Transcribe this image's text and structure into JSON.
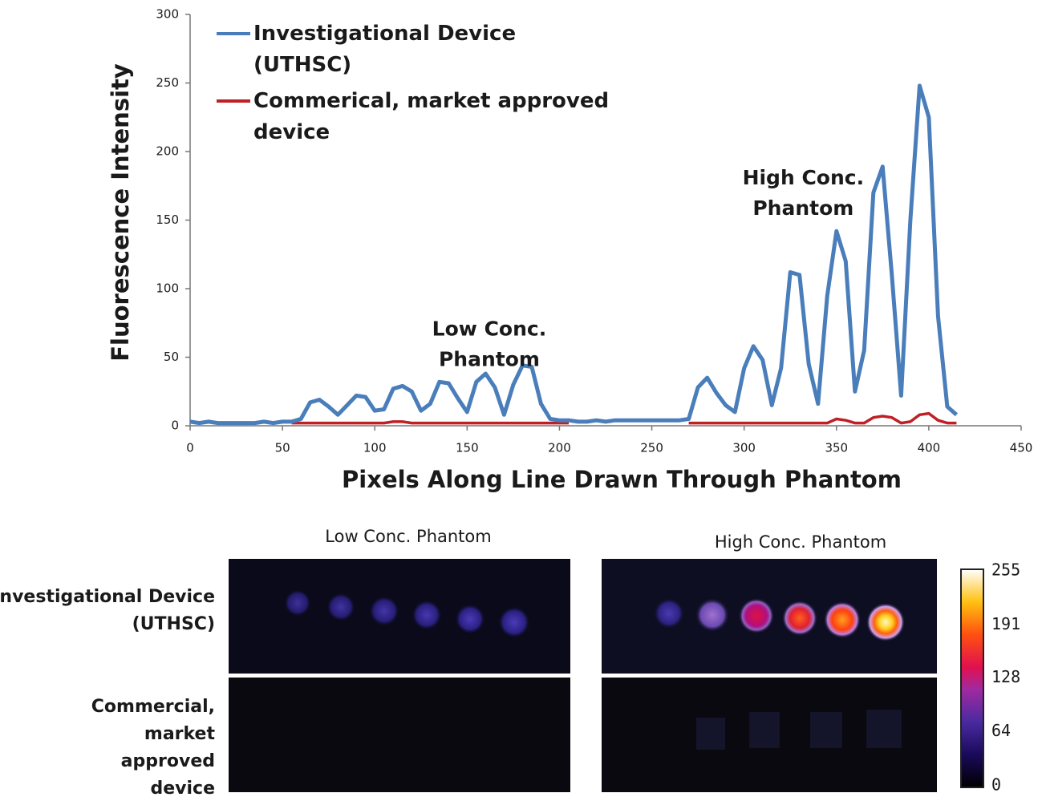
{
  "chart_data": {
    "type": "line",
    "x_label": "Pixels Along Line Drawn Through Phantom",
    "y_label": "Fluorescence Intensity",
    "xlim": [
      0,
      450
    ],
    "xticks": [
      0,
      50,
      100,
      150,
      200,
      250,
      300,
      350,
      400,
      450
    ],
    "ylim": [
      0,
      300
    ],
    "yticks": [
      0,
      50,
      100,
      150,
      200,
      250,
      300
    ],
    "x": [
      0,
      5,
      10,
      15,
      20,
      25,
      30,
      35,
      40,
      45,
      50,
      55,
      60,
      65,
      70,
      75,
      80,
      85,
      90,
      95,
      100,
      105,
      110,
      115,
      120,
      125,
      130,
      135,
      140,
      145,
      150,
      155,
      160,
      165,
      170,
      175,
      180,
      185,
      190,
      195,
      200,
      205,
      210,
      215,
      220,
      225,
      230,
      235,
      240,
      245,
      250,
      255,
      260,
      265,
      270,
      275,
      280,
      285,
      290,
      295,
      300,
      305,
      310,
      315,
      320,
      325,
      330,
      335,
      340,
      345,
      350,
      355,
      360,
      365,
      370,
      375,
      380,
      385,
      390,
      395,
      400,
      405,
      410,
      415
    ],
    "series": [
      {
        "name": "Investigational Device (UTHSC)",
        "color": "#4a7ebb",
        "values": [
          3,
          2,
          3,
          2,
          2,
          2,
          2,
          2,
          3,
          2,
          3,
          3,
          5,
          17,
          19,
          14,
          8,
          15,
          22,
          21,
          11,
          12,
          27,
          29,
          25,
          11,
          16,
          32,
          31,
          20,
          10,
          32,
          38,
          28,
          8,
          30,
          44,
          43,
          16,
          5,
          4,
          4,
          3,
          3,
          4,
          3,
          4,
          4,
          4,
          4,
          4,
          4,
          4,
          4,
          5,
          28,
          35,
          24,
          15,
          10,
          42,
          58,
          48,
          15,
          42,
          112,
          110,
          45,
          16,
          95,
          142,
          120,
          25,
          55,
          170,
          189,
          110,
          22,
          150,
          248,
          225,
          80,
          14,
          8
        ]
      },
      {
        "name": "Commerical, market approved device",
        "color": "#be2025",
        "values": [
          null,
          null,
          null,
          null,
          null,
          null,
          null,
          null,
          null,
          null,
          null,
          2,
          2,
          2,
          2,
          2,
          2,
          2,
          2,
          2,
          2,
          2,
          3,
          3,
          2,
          2,
          2,
          2,
          2,
          2,
          2,
          2,
          2,
          2,
          2,
          2,
          2,
          2,
          2,
          2,
          2,
          2,
          null,
          null,
          null,
          null,
          null,
          null,
          null,
          null,
          null,
          null,
          null,
          null,
          2,
          2,
          2,
          2,
          2,
          2,
          2,
          2,
          2,
          2,
          2,
          2,
          2,
          2,
          2,
          2,
          5,
          4,
          2,
          2,
          6,
          7,
          6,
          2,
          3,
          8,
          9,
          4,
          2,
          2
        ]
      }
    ],
    "annotations": [
      {
        "text": "Low Conc. Phantom",
        "x": 162,
        "y": 70
      },
      {
        "text": "High Conc. Phantom",
        "x": 332,
        "y": 180
      }
    ]
  },
  "images": {
    "columns": [
      "Low Conc. Phantom",
      "High Conc. Phantom"
    ],
    "rows": [
      "Investigational Device (UTHSC)",
      "Commercial, market approved device"
    ],
    "colorbar": {
      "ticks": [
        255,
        191,
        128,
        64,
        0
      ]
    }
  }
}
